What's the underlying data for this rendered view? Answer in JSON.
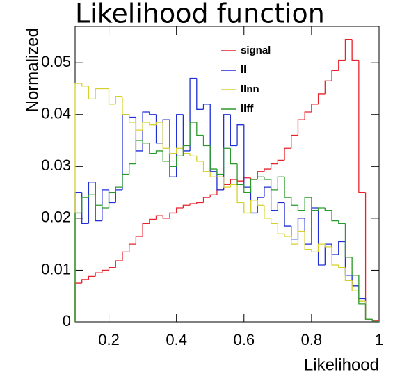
{
  "chart_data": {
    "type": "histogram",
    "title": "Likelihood function",
    "xlabel": "Likelihood",
    "ylabel": "Normalized",
    "bins": [
      0.1,
      0.12,
      0.14,
      0.16,
      0.18,
      0.2,
      0.22,
      0.24,
      0.26,
      0.28,
      0.3,
      0.32,
      0.34,
      0.36,
      0.38,
      0.4,
      0.42,
      0.44,
      0.46,
      0.48,
      0.5,
      0.52,
      0.54,
      0.56,
      0.58,
      0.6,
      0.62,
      0.64,
      0.66,
      0.68,
      0.7,
      0.72,
      0.74,
      0.76,
      0.78,
      0.8,
      0.82,
      0.84,
      0.86,
      0.88,
      0.9,
      0.92,
      0.94,
      0.96,
      0.98,
      1
    ],
    "series": [
      {
        "name": "signal",
        "color": "#e8222a",
        "values": [
          0.0075,
          0.0082,
          0.0088,
          0.0095,
          0.01,
          0.0105,
          0.0118,
          0.0135,
          0.015,
          0.0165,
          0.019,
          0.0198,
          0.0205,
          0.02,
          0.021,
          0.022,
          0.0225,
          0.0228,
          0.023,
          0.024,
          0.0245,
          0.0255,
          0.0265,
          0.0275,
          0.0272,
          0.0278,
          0.0275,
          0.029,
          0.0295,
          0.0305,
          0.0312,
          0.0335,
          0.036,
          0.039,
          0.0405,
          0.042,
          0.044,
          0.0465,
          0.0485,
          0.0505,
          0.0545,
          0.0505,
          0.025,
          0.0005,
          0.0003
        ]
      },
      {
        "name": "ll",
        "color": "#1f2ed6",
        "values": [
          0.025,
          0.019,
          0.027,
          0.0195,
          0.0255,
          0.023,
          0.0255,
          0.04,
          0.0395,
          0.033,
          0.0405,
          0.04,
          0.0345,
          0.039,
          0.028,
          0.04,
          0.033,
          0.047,
          0.041,
          0.042,
          0.029,
          0.0255,
          0.04,
          0.034,
          0.038,
          0.026,
          0.021,
          0.024,
          0.026,
          0.0215,
          0.023,
          0.0185,
          0.016,
          0.02,
          0.015,
          0.022,
          0.011,
          0.015,
          0.013,
          0.0155,
          0.009,
          0.007,
          0.0045,
          0.0005,
          0.0002
        ]
      },
      {
        "name": "llnn",
        "color": "#d6d12a",
        "values": [
          0.046,
          0.0455,
          0.043,
          0.045,
          0.045,
          0.042,
          0.0435,
          0.04,
          0.0385,
          0.037,
          0.0385,
          0.038,
          0.0385,
          0.0335,
          0.0325,
          0.0335,
          0.0325,
          0.032,
          0.031,
          0.029,
          0.028,
          0.028,
          0.026,
          0.0265,
          0.023,
          0.021,
          0.0235,
          0.0225,
          0.02,
          0.019,
          0.017,
          0.0165,
          0.015,
          0.0175,
          0.014,
          0.0135,
          0.015,
          0.0145,
          0.011,
          0.0105,
          0.008,
          0.006,
          0.004,
          0.0005,
          0.0002
        ]
      },
      {
        "name": "llff",
        "color": "#2a9a2a",
        "values": [
          0.021,
          0.024,
          0.0245,
          0.0225,
          0.022,
          0.025,
          0.026,
          0.0285,
          0.0305,
          0.035,
          0.0345,
          0.0325,
          0.033,
          0.031,
          0.03,
          0.032,
          0.034,
          0.0385,
          0.036,
          0.034,
          0.0295,
          0.0285,
          0.0335,
          0.0305,
          0.0265,
          0.025,
          0.0275,
          0.028,
          0.0275,
          0.0255,
          0.028,
          0.024,
          0.0225,
          0.0215,
          0.024,
          0.0215,
          0.022,
          0.0215,
          0.0195,
          0.019,
          0.0125,
          0.009,
          0.0035,
          0.0005,
          0.0002
        ]
      }
    ],
    "xlim": [
      0.1,
      1
    ],
    "ylim": [
      0,
      0.057
    ],
    "xticks": [
      0.2,
      0.4,
      0.6,
      0.8,
      1
    ],
    "yticks": [
      0,
      0.01,
      0.02,
      0.03,
      0.04,
      0.05
    ]
  }
}
